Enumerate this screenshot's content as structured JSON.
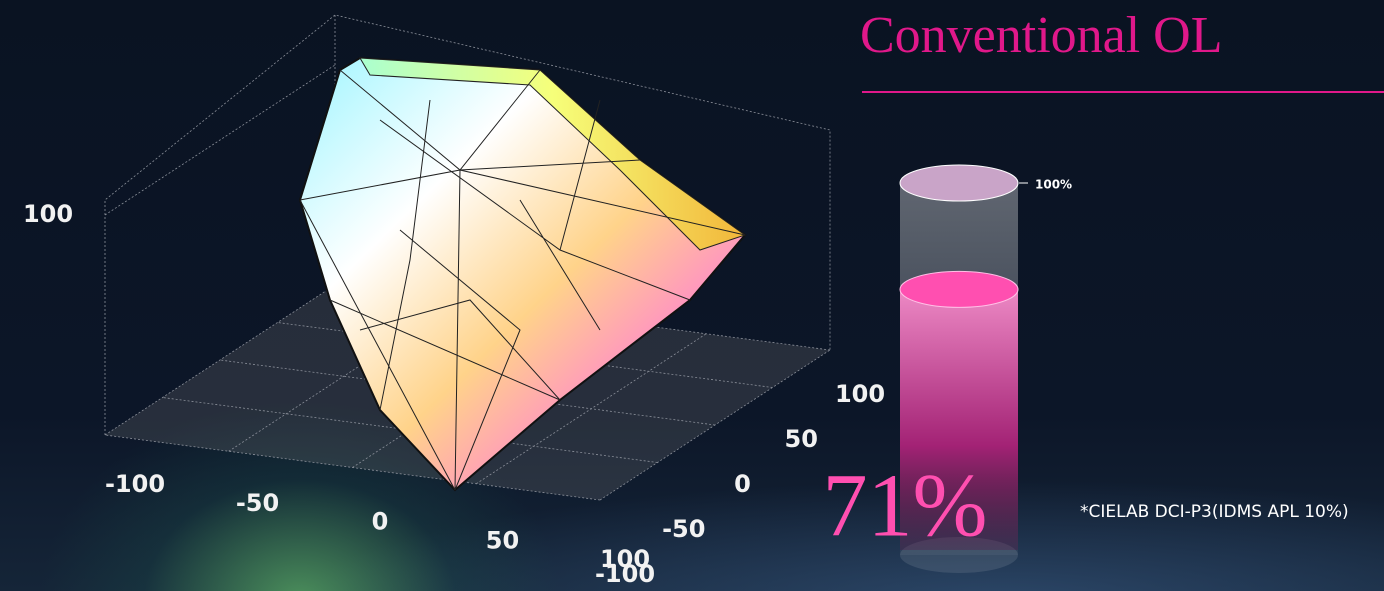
{
  "chart_data": [
    {
      "type": "gamut3d",
      "xlim": [
        -100,
        100
      ],
      "xticks": [
        -100,
        -50,
        0,
        50,
        100
      ],
      "ylim": [
        -100,
        100
      ],
      "yticks": [
        -100,
        -50,
        0,
        50,
        100
      ],
      "zlim": [
        0,
        100
      ],
      "zticks": [
        100
      ]
    },
    {
      "type": "gauge",
      "title": "Conventional OL",
      "values": [
        71
      ],
      "value_labels": [
        "71%"
      ],
      "ylim": [
        0,
        100
      ],
      "yticks": [
        {
          "value": 100,
          "label": "100%"
        }
      ],
      "color": "#ff4fb0",
      "note": "*CIELAB DCI-P3(IDMS APL 10%)"
    }
  ]
}
